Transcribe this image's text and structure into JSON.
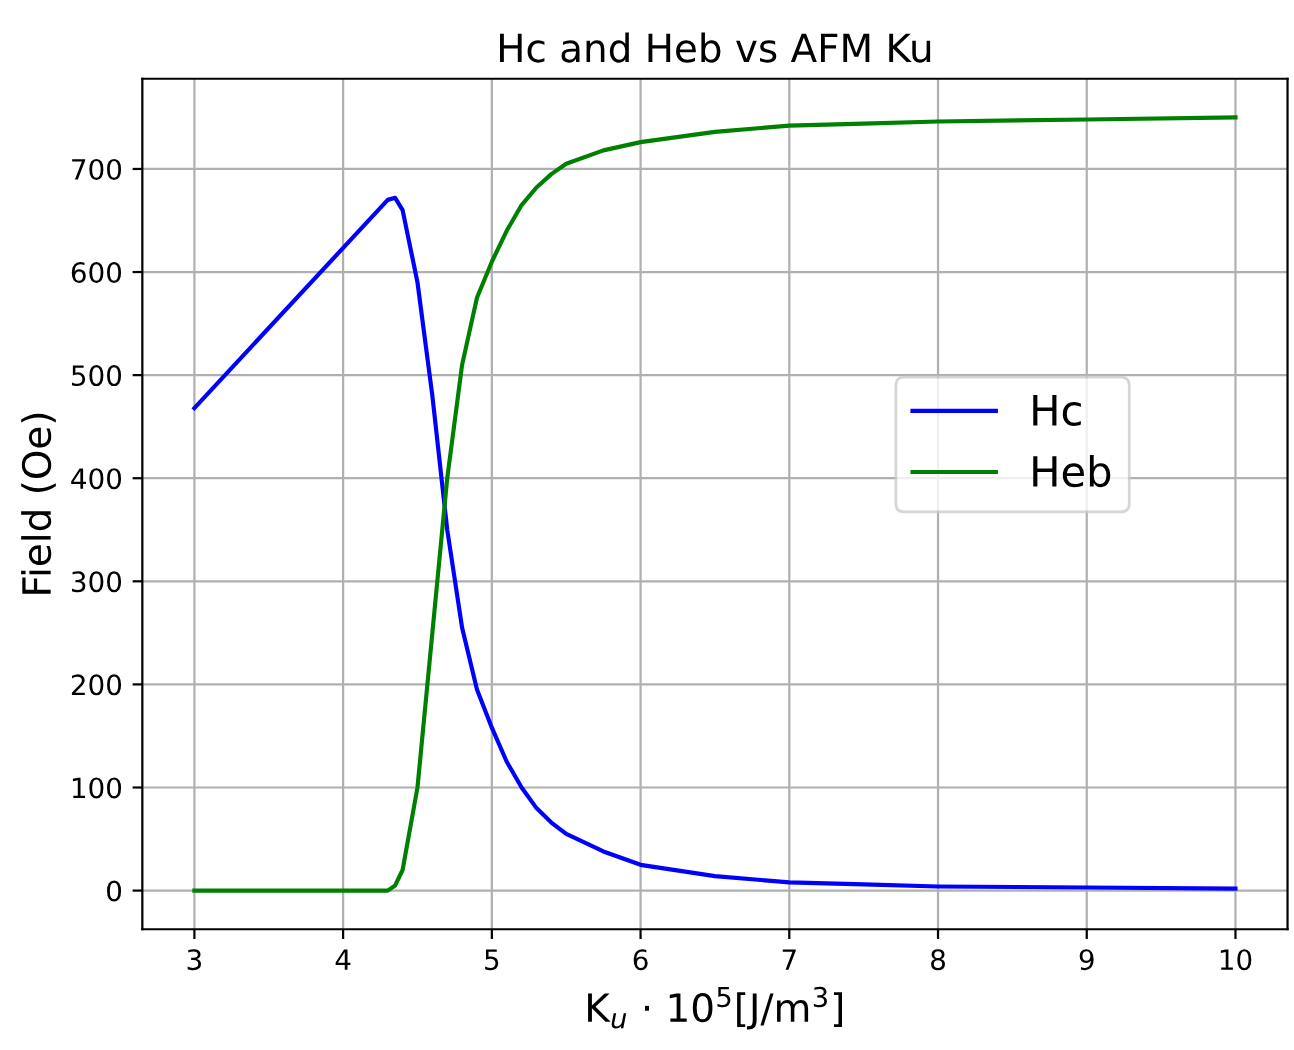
{
  "chart_data": {
    "type": "line",
    "title": "Hc and Heb vs AFM Ku",
    "xlabel": "K$_{u}$ · 10$^{5}$[J/m$^{3}$]",
    "ylabel": "Field (Oe)",
    "xlim": [
      2.65,
      10.35
    ],
    "xticks": [
      3,
      4,
      5,
      6,
      7,
      8,
      9,
      10
    ],
    "ylim": [
      -37.5,
      787.5
    ],
    "yticks": [
      0,
      100,
      200,
      300,
      400,
      500,
      600,
      700
    ],
    "grid": true,
    "legend": "center right",
    "marker": "none",
    "line_style": "solid",
    "x": [
      3,
      4.3,
      4.35,
      4.4,
      4.5,
      4.6,
      4.7,
      4.8,
      4.9,
      5.0,
      5.1,
      5.2,
      5.3,
      5.4,
      5.5,
      5.75,
      6,
      6.5,
      7,
      7.5,
      8,
      9,
      10
    ],
    "series": [
      {
        "name": "Hc",
        "color": "#0000ff",
        "values": [
          468,
          670,
          672,
          660,
          590,
          480,
          350,
          255,
          195,
          158,
          125,
          100,
          80,
          66,
          55,
          38,
          25,
          14,
          8,
          6,
          4,
          3,
          2
        ]
      },
      {
        "name": "Heb",
        "color": "#008000",
        "values": [
          0,
          0,
          5,
          20,
          100,
          250,
          400,
          510,
          575,
          610,
          640,
          665,
          682,
          695,
          705,
          718,
          726,
          736,
          742,
          744,
          746,
          748,
          750
        ]
      }
    ]
  }
}
